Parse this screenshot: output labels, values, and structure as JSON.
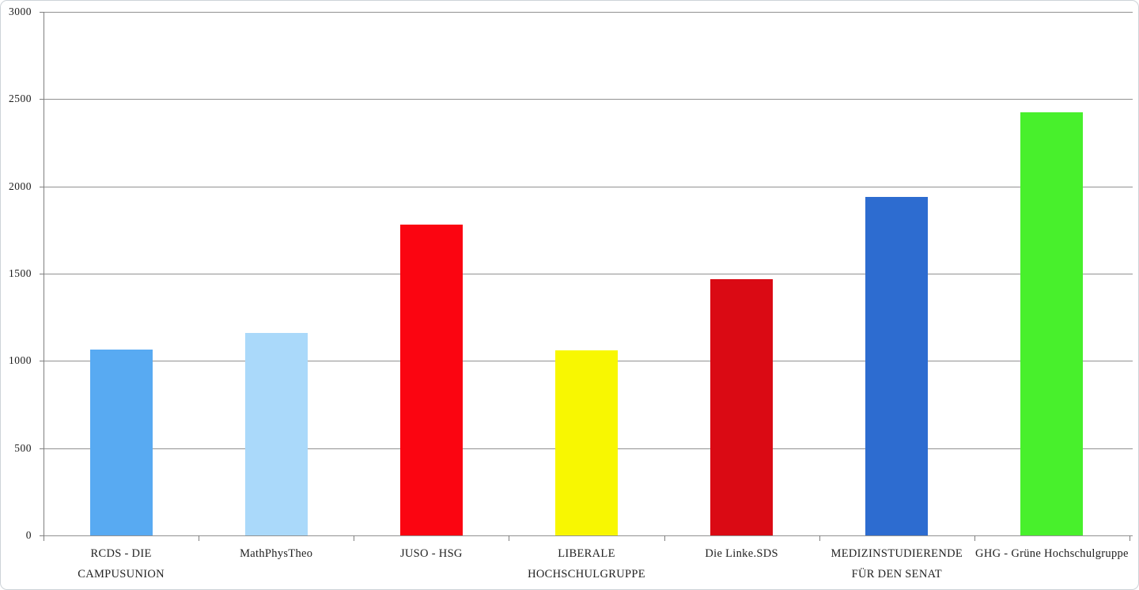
{
  "page": {
    "background_color": "#ffffff",
    "frame_border_color": "#cdd3d8",
    "gridline_color": "#919191",
    "axis_color": "#808080",
    "text_color": "#1b1b1b"
  },
  "chart_data": {
    "type": "bar",
    "title": "",
    "xlabel": "",
    "ylabel": "",
    "categories": [
      "RCDS - DIE CAMPUSUNION",
      "MathPhysTheo",
      "JUSO - HSG",
      "LIBERALE HOCHSCHULGRUPPE",
      "Die Linke.SDS",
      "MEDIZINSTUDIERENDE FÜR DEN SENAT",
      "GHG - Grüne Hochschulgruppe"
    ],
    "category_display_lines": [
      [
        "RCDS - DIE",
        "CAMPUSUNION"
      ],
      [
        "MathPhysTheo"
      ],
      [
        "JUSO - HSG"
      ],
      [
        "LIBERALE",
        "HOCHSCHULGRUPPE"
      ],
      [
        "Die Linke.SDS"
      ],
      [
        "MEDIZINSTUDIERENDE",
        "FÜR DEN SENAT"
      ],
      [
        "GHG - Grüne Hochschulgruppe"
      ]
    ],
    "values": [
      1065,
      1160,
      1780,
      1060,
      1470,
      1940,
      2425
    ],
    "bar_colors": [
      "#58aaf2",
      "#aad9fa",
      "#fb0511",
      "#f8f701",
      "#da0a14",
      "#2d6cd0",
      "#48f02c"
    ],
    "ylim": [
      0,
      3000
    ],
    "ytick_interval": 500,
    "ytick_labels": [
      "0",
      "500",
      "1000",
      "1500",
      "2000",
      "2500",
      "3000"
    ],
    "grid": true,
    "legend": false
  }
}
